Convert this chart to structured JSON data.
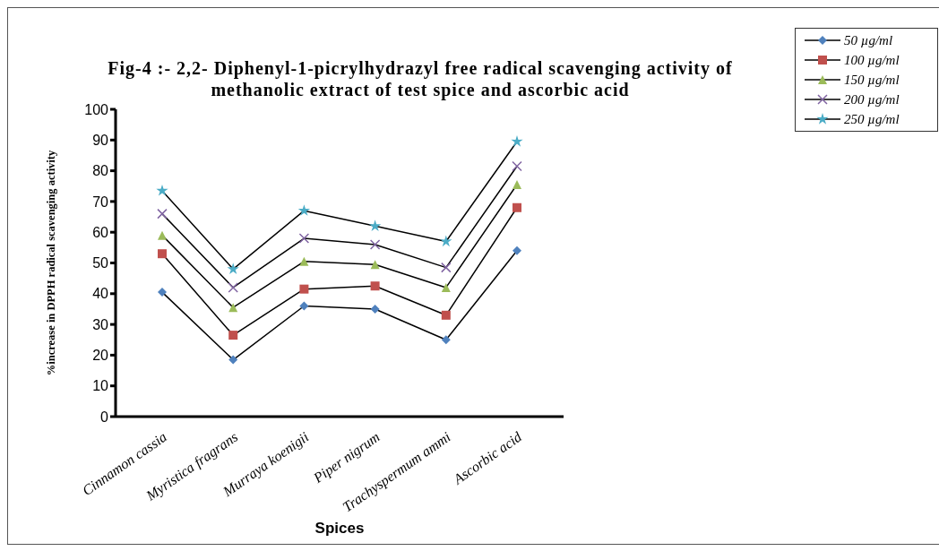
{
  "chart_data": {
    "type": "line",
    "title": "Fig-4 :- 2,2- Diphenyl-1-picrylhydrazyl free radical scavenging activity of methanolic extract of  test spice and ascorbic acid",
    "xlabel": "Spices",
    "ylabel": "%increase in DPPH radical scavenging activity",
    "categories": [
      "Cinnamon cassia",
      "Myristica fragrans",
      "Murraya koenigii",
      "Piper nigrum",
      "Trachyspermum ammi",
      "Ascorbic acid"
    ],
    "ylim": [
      0,
      100
    ],
    "yticks": [
      0,
      10,
      20,
      30,
      40,
      50,
      60,
      70,
      80,
      90,
      100
    ],
    "grid": false,
    "legend": "top right",
    "series": [
      {
        "name": "50 µg/ml",
        "color": "#4f81bd",
        "marker": "diamond",
        "values": [
          40.5,
          18.5,
          36,
          35,
          25,
          54
        ]
      },
      {
        "name": "100 µg/ml",
        "color": "#c0504d",
        "marker": "square",
        "values": [
          53,
          26.5,
          41.5,
          42.5,
          33,
          68
        ]
      },
      {
        "name": "150 µg/ml",
        "color": "#9bbb59",
        "marker": "triangle",
        "values": [
          59,
          35.5,
          50.5,
          49.5,
          42,
          75.5
        ]
      },
      {
        "name": "200 µg/ml",
        "color": "#8064a2",
        "marker": "cross",
        "values": [
          66,
          42,
          58,
          56,
          48.5,
          81.5
        ]
      },
      {
        "name": "250 µg/ml",
        "color": "#4bacc6",
        "marker": "star",
        "values": [
          73.5,
          48,
          67,
          62,
          57,
          89.5
        ]
      }
    ]
  }
}
